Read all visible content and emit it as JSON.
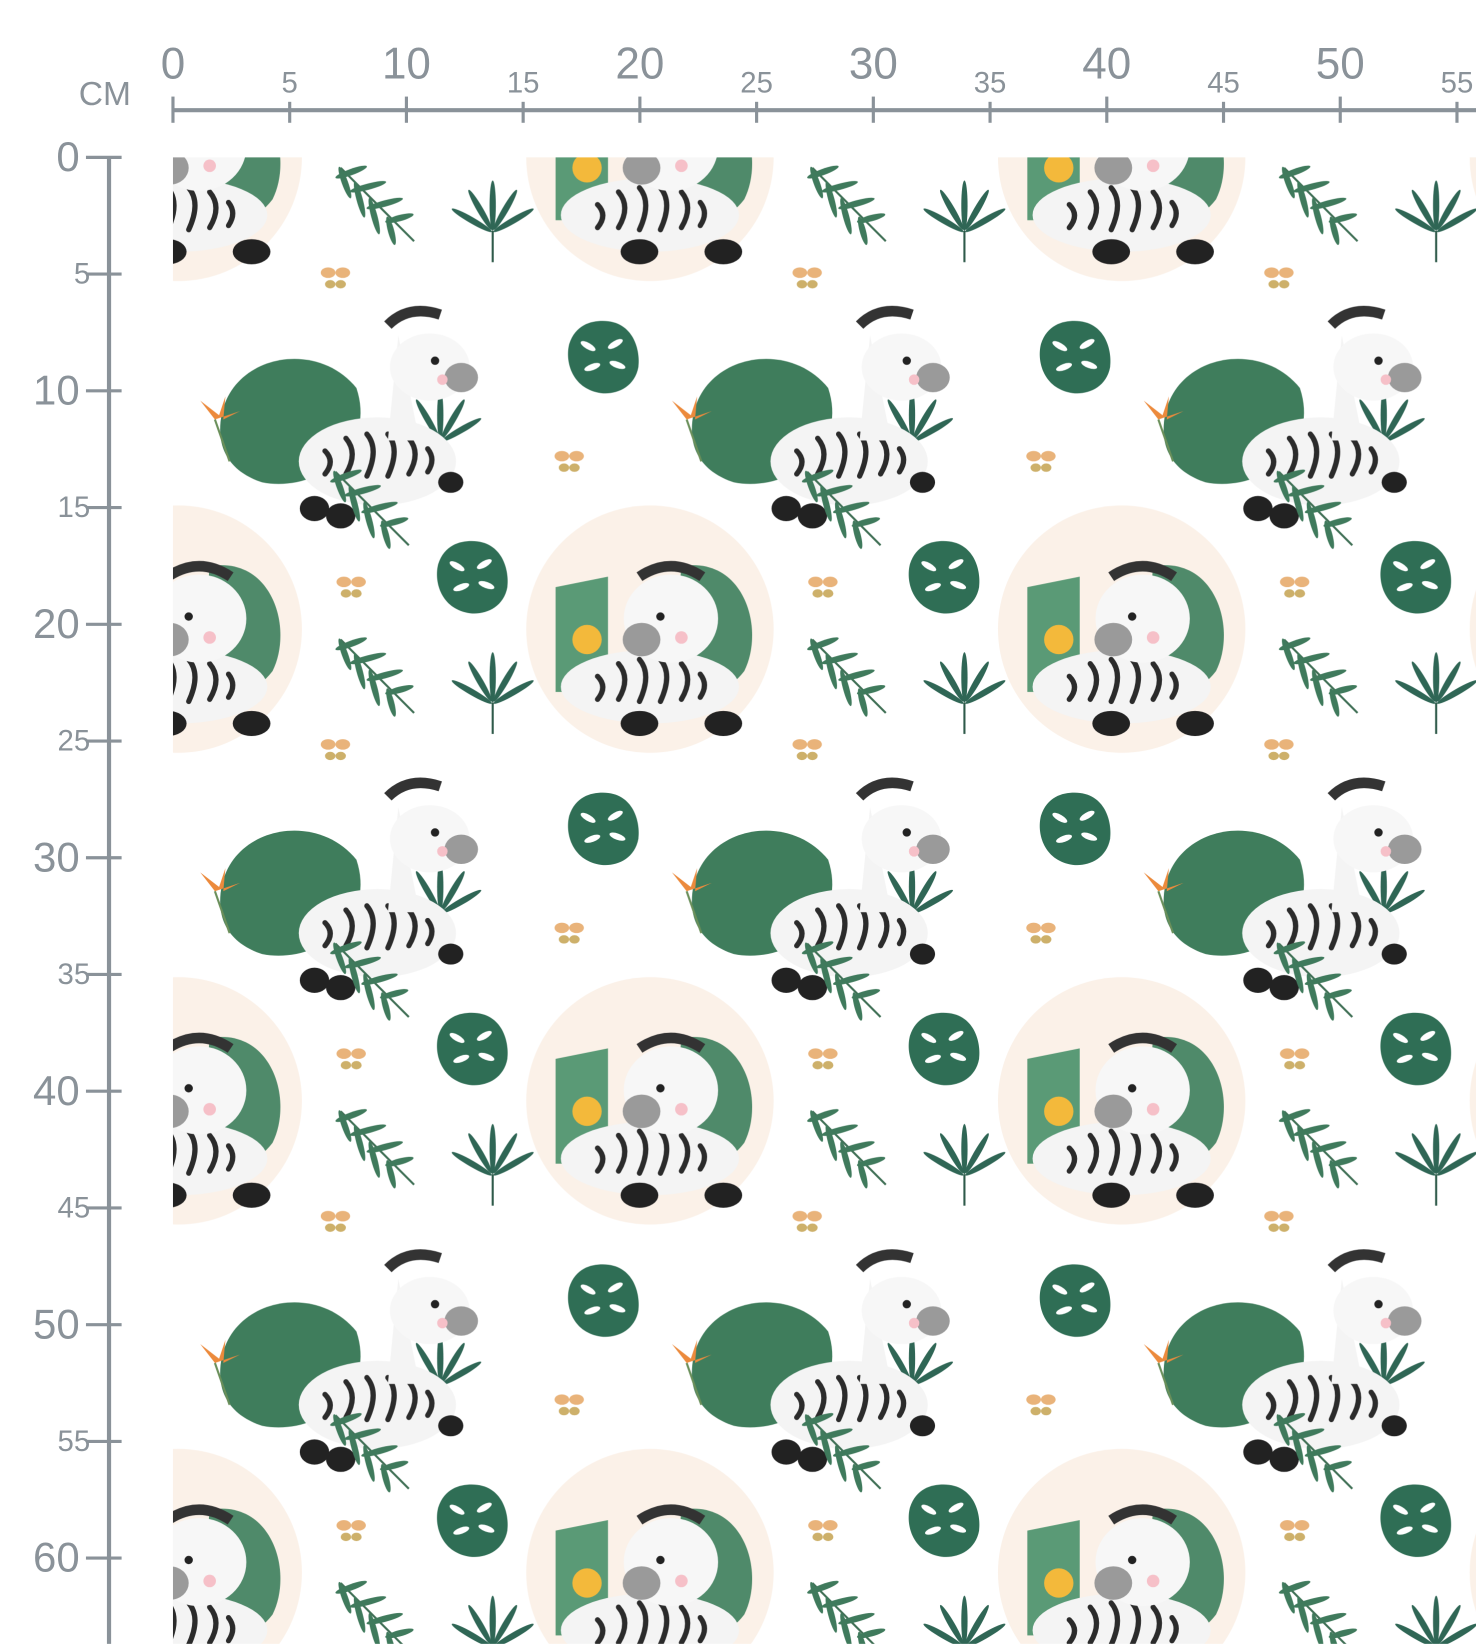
{
  "ruler": {
    "unit": "CM",
    "x_ticks": [
      0,
      5,
      10,
      15,
      20,
      25,
      30,
      35,
      40,
      45,
      50,
      55
    ],
    "y_ticks": [
      0,
      5,
      10,
      15,
      20,
      25,
      30,
      35,
      40,
      45,
      50,
      55,
      60
    ]
  }
}
